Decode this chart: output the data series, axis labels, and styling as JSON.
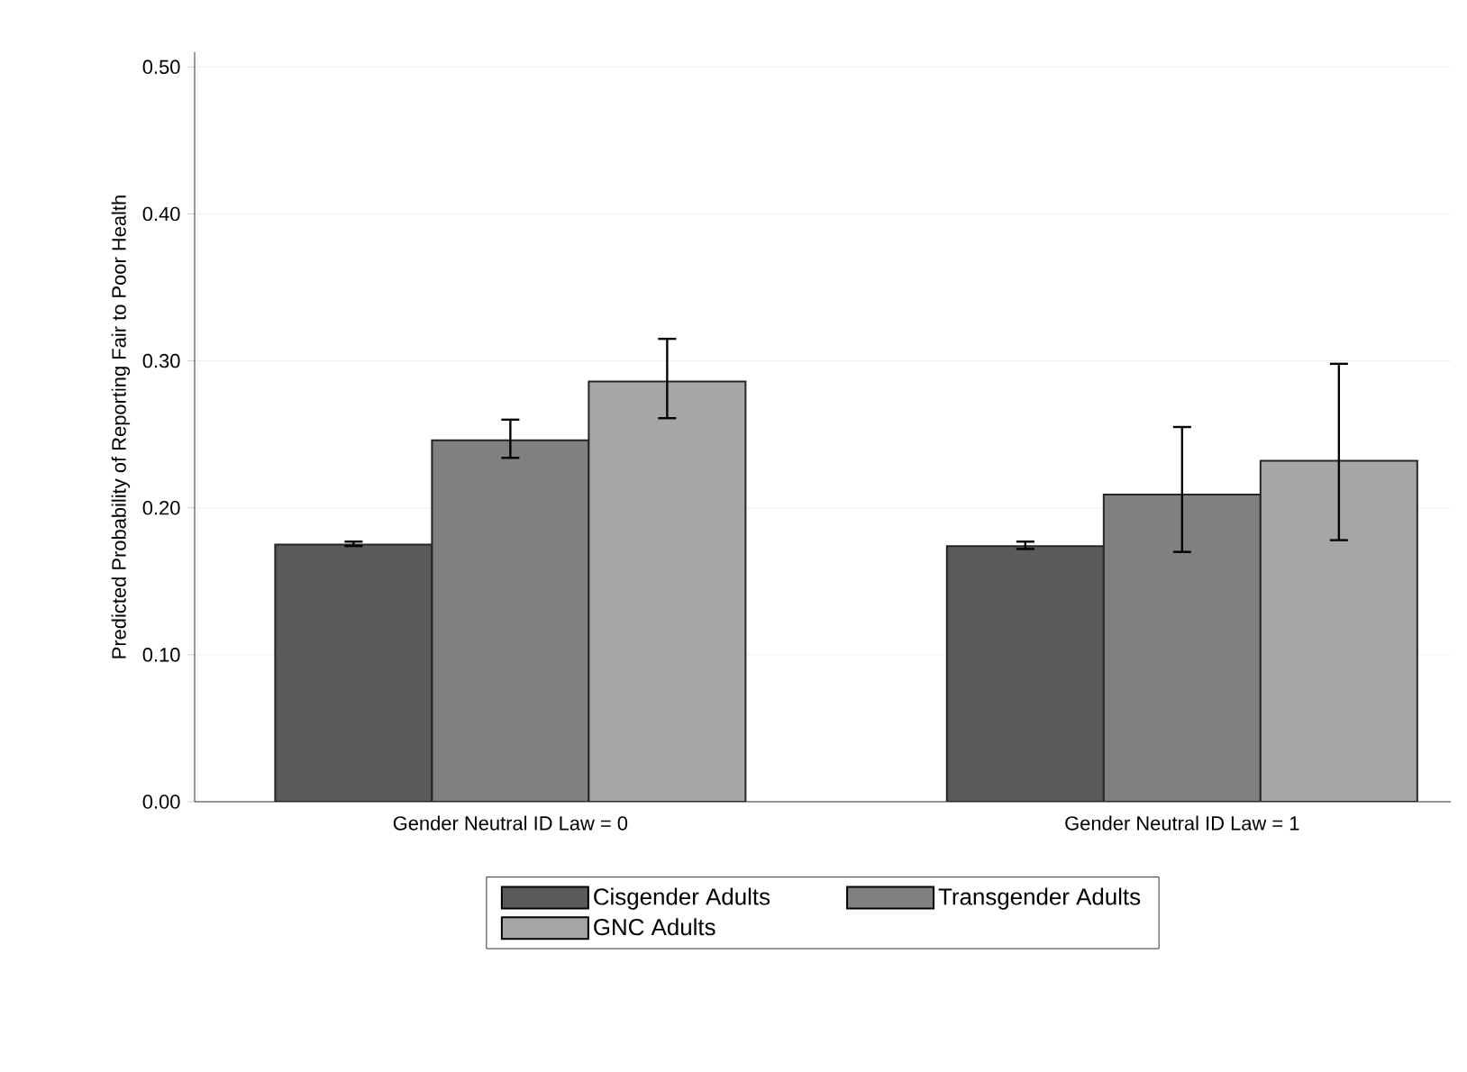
{
  "chart_data": {
    "type": "bar",
    "ylabel": "Predicted Probability of Reporting Fair to Poor Health",
    "categories": [
      "Gender Neutral ID Law = 0",
      "Gender Neutral ID Law = 1"
    ],
    "series": [
      {
        "name": "Cisgender Adults",
        "color": "#5a5a5a",
        "values": [
          0.175,
          0.174
        ],
        "errors": [
          [
            0.174,
            0.177
          ],
          [
            0.172,
            0.177
          ]
        ]
      },
      {
        "name": "Transgender Adults",
        "color": "#808080",
        "values": [
          0.246,
          0.209
        ],
        "errors": [
          [
            0.234,
            0.26
          ],
          [
            0.17,
            0.255
          ]
        ]
      },
      {
        "name": "GNC Adults",
        "color": "#a6a6a6",
        "values": [
          0.286,
          0.232
        ],
        "errors": [
          [
            0.261,
            0.315
          ],
          [
            0.178,
            0.298
          ]
        ]
      }
    ],
    "ylim": [
      0,
      0.51
    ],
    "yticks": [
      {
        "value": 0,
        "label": "0.00"
      },
      {
        "value": 0.1,
        "label": "0.10"
      },
      {
        "value": 0.2,
        "label": "0.20"
      },
      {
        "value": 0.3,
        "label": "0.30"
      },
      {
        "value": 0.4,
        "label": "0.40"
      },
      {
        "value": 0.5,
        "label": "0.50"
      }
    ],
    "grid": "y",
    "legend": "bottom"
  }
}
